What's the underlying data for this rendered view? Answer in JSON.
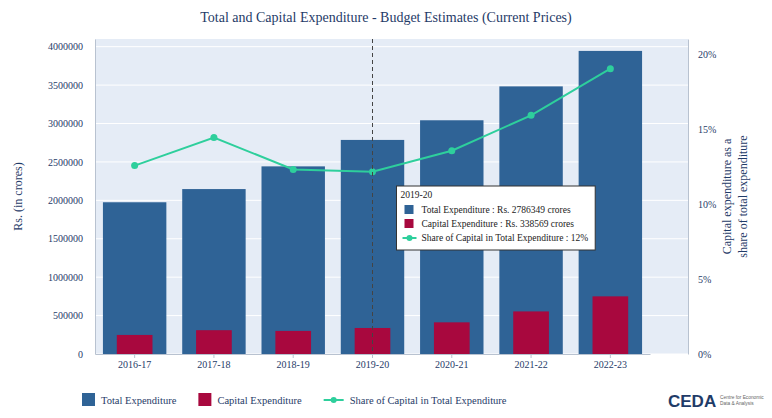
{
  "chart_data": {
    "type": "bar",
    "title": "Total and Capital Expenditure - Budget Estimates (Current Prices)",
    "y_label": "Rs. (in crores)",
    "y2_label": [
      "Capital expenditure as a",
      "share of total expenditure"
    ],
    "categories": [
      "2016-17",
      "2017-18",
      "2018-19",
      "2019-20",
      "2020-21",
      "2021-22",
      "2022-23"
    ],
    "series": [
      {
        "name": "Total Expenditure",
        "type": "bar",
        "color": "#2f6396",
        "values": [
          1975000,
          2146735,
          2442213,
          2786349,
          3042230,
          3483236,
          3944909
        ]
      },
      {
        "name": "Capital Expenditure",
        "type": "bar",
        "color": "#a8083e",
        "values": [
          248000,
          309801,
          300441,
          338569,
          412085,
          554236,
          750246
        ]
      },
      {
        "name": "Share of Capital in Total Expenditure",
        "type": "line",
        "axis": "y2",
        "color": "#2ecf9c",
        "marker": "circle",
        "values": [
          12.56,
          14.43,
          12.3,
          12.15,
          13.55,
          15.91,
          19.02
        ]
      }
    ],
    "ylim": [
      0,
      4100000
    ],
    "yticks": [
      0,
      500000,
      1000000,
      1500000,
      2000000,
      2500000,
      3000000,
      3500000,
      4000000
    ],
    "y2lim": [
      0,
      21
    ],
    "y2ticks": [
      {
        "value": 0,
        "label": "0%"
      },
      {
        "value": 5,
        "label": "5%"
      },
      {
        "value": 10,
        "label": "10%"
      },
      {
        "value": 15,
        "label": "15%"
      },
      {
        "value": 20,
        "label": "20%"
      }
    ],
    "grid": true,
    "legend": "bottom",
    "tooltip": {
      "category": "2019-20",
      "lines": [
        "Total Expenditure : Rs. 2786349 crores",
        "Capital Expenditure : Rs. 338569 crores",
        "Share of Capital in Total Expenditure : 12%"
      ]
    },
    "logo": {
      "text": "CEDA",
      "caption": [
        "Centre for Economic",
        "Data & Analysis"
      ]
    }
  }
}
